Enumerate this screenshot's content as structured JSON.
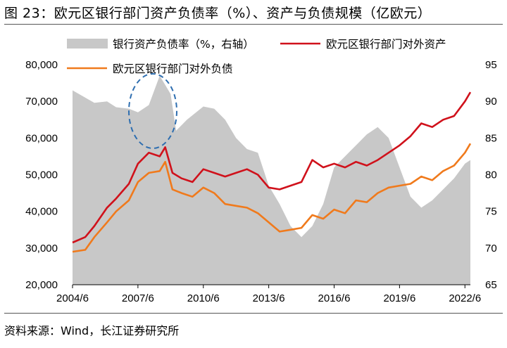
{
  "title": "图 23：欧元区银行部门资产负债率（%）、资产与负债规模（亿欧元）",
  "source": "资料来源：Wind，长江证券研究所",
  "colors": {
    "ratio_area": "#c8c8c8",
    "assets": "#d0111b",
    "liabilities": "#f07a1c",
    "annotation": "#2e6eb0"
  },
  "chart_data": {
    "type": "line",
    "x_labels": [
      "2004/6",
      "2007/6",
      "2010/6",
      "2013/6",
      "2016/6",
      "2019/6",
      "2022/6"
    ],
    "x_range": [
      "2004/6",
      "2022/9"
    ],
    "ylim_left": [
      20000,
      80000
    ],
    "yticks_left": [
      "20,000",
      "30,000",
      "40,000",
      "50,000",
      "60,000",
      "70,000",
      "80,000"
    ],
    "ylim_right": [
      65,
      95
    ],
    "yticks_right": [
      "65",
      "70",
      "75",
      "80",
      "85",
      "90",
      "95"
    ],
    "annotation": "dashed ellipse highlighting 2007–2008 peak of ratio",
    "series": [
      {
        "name": "银行资产负债率（%，右轴）",
        "kind": "area",
        "axis": "right",
        "x": [
          "2004/6",
          "2005/1",
          "2005/6",
          "2006/1",
          "2006/6",
          "2007/1",
          "2007/6",
          "2007/12",
          "2008/6",
          "2008/12",
          "2009/3",
          "2009/9",
          "2010/6",
          "2010/12",
          "2011/6",
          "2011/12",
          "2012/6",
          "2012/12",
          "2013/6",
          "2013/12",
          "2014/6",
          "2014/12",
          "2015/6",
          "2015/12",
          "2016/6",
          "2016/12",
          "2017/6",
          "2017/12",
          "2018/6",
          "2018/12",
          "2019/6",
          "2019/12",
          "2020/6",
          "2020/12",
          "2021/6",
          "2021/12",
          "2022/6",
          "2022/9"
        ],
        "values": [
          91.5,
          90.5,
          89.8,
          90.0,
          89.2,
          89.0,
          88.5,
          89.5,
          93.5,
          91.0,
          86.0,
          87.5,
          89.3,
          89.0,
          87.5,
          85.0,
          83.5,
          83.0,
          78.5,
          76.0,
          73.0,
          71.5,
          73.0,
          76.0,
          81.0,
          82.5,
          84.0,
          85.5,
          86.5,
          85.0,
          81.0,
          77.0,
          75.5,
          76.5,
          78.0,
          79.5,
          81.5,
          82.0
        ]
      },
      {
        "name": "欧元区银行部门对外资产",
        "kind": "line",
        "axis": "left",
        "x": [
          "2004/6",
          "2005/1",
          "2005/6",
          "2006/1",
          "2006/6",
          "2007/1",
          "2007/6",
          "2007/12",
          "2008/6",
          "2008/9",
          "2009/1",
          "2009/6",
          "2009/12",
          "2010/6",
          "2010/12",
          "2011/6",
          "2011/12",
          "2012/6",
          "2012/12",
          "2013/6",
          "2013/12",
          "2014/6",
          "2014/12",
          "2015/6",
          "2015/12",
          "2016/6",
          "2016/12",
          "2017/6",
          "2017/12",
          "2018/6",
          "2018/12",
          "2019/6",
          "2019/12",
          "2020/6",
          "2020/12",
          "2021/6",
          "2021/12",
          "2022/6",
          "2022/9"
        ],
        "values": [
          31500,
          33000,
          36000,
          41000,
          43500,
          47500,
          53000,
          56000,
          55000,
          57500,
          50500,
          49000,
          48000,
          51500,
          50500,
          49500,
          50500,
          51500,
          50000,
          46500,
          46000,
          47000,
          48000,
          54000,
          52000,
          53000,
          52000,
          53500,
          52500,
          54000,
          56000,
          58000,
          60500,
          64000,
          63000,
          65000,
          66000,
          70000,
          72500
        ]
      },
      {
        "name": "欧元区银行部门对外负债",
        "kind": "line",
        "axis": "left",
        "x": [
          "2004/6",
          "2005/1",
          "2005/6",
          "2006/1",
          "2006/6",
          "2007/1",
          "2007/6",
          "2007/12",
          "2008/6",
          "2008/9",
          "2009/1",
          "2009/6",
          "2009/12",
          "2010/6",
          "2010/12",
          "2011/6",
          "2011/12",
          "2012/6",
          "2012/12",
          "2013/6",
          "2013/12",
          "2014/6",
          "2014/12",
          "2015/6",
          "2015/12",
          "2016/6",
          "2016/12",
          "2017/6",
          "2017/12",
          "2018/6",
          "2018/12",
          "2019/6",
          "2019/12",
          "2020/6",
          "2020/12",
          "2021/6",
          "2021/12",
          "2022/6",
          "2022/9"
        ],
        "values": [
          29000,
          29500,
          33000,
          37000,
          40000,
          43000,
          48000,
          50500,
          51000,
          53500,
          46000,
          45000,
          44000,
          46500,
          45000,
          42000,
          41500,
          41000,
          39500,
          37000,
          34500,
          35000,
          35500,
          39000,
          38000,
          40500,
          39500,
          43000,
          42500,
          45000,
          46500,
          47000,
          47500,
          49500,
          48500,
          51000,
          52500,
          56000,
          58500
        ]
      }
    ]
  }
}
